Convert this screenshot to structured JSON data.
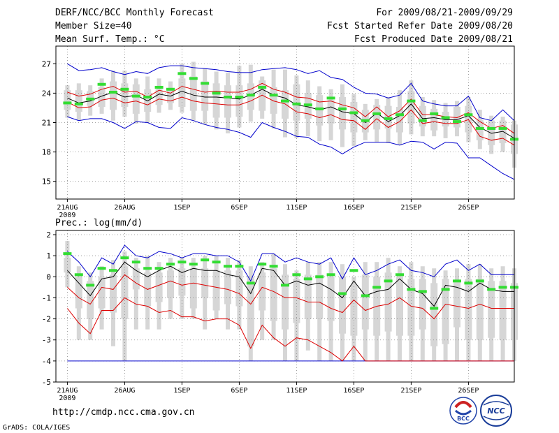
{
  "header": {
    "title": "DERF/NCC/BCC Monthly Forecast",
    "member_size": "Member Size=40",
    "variable": "Mean Surf. Temp.: °C",
    "for_period": "For 2009/08/21-2009/09/29",
    "fcst_started": "Fcst Started Refer Date 2009/08/20",
    "fcst_produced": "Fcst Produced Date 2009/08/21"
  },
  "footer": {
    "url": "http://cmdp.ncc.cma.gov.cn",
    "credit": "GrADS: COLA/IGES",
    "logo1_text": "BCC",
    "logo2_text": "NCC"
  },
  "colors": {
    "box": "#d6d6d6",
    "median": "#33dd33",
    "mean": "#000000",
    "inner": "#dd0000",
    "outer": "#0000cc",
    "grid": "#888888"
  },
  "chart_data": [
    {
      "type": "box-ensemble",
      "title": "Mean Surf. Temp.: °C",
      "x_tick_labels": [
        "21AUG",
        "26AUG",
        "1SEP",
        "6SEP",
        "11SEP",
        "16SEP",
        "21SEP",
        "26SEP"
      ],
      "x_tick_days": [
        1,
        6,
        11,
        16,
        21,
        26,
        31,
        36
      ],
      "x_sublabel": "2009",
      "day_range": [
        0,
        40
      ],
      "y_ticks": [
        15,
        18,
        21,
        24,
        27
      ],
      "ylim": [
        13.2,
        28.8
      ],
      "days": [
        1,
        2,
        3,
        4,
        5,
        6,
        7,
        8,
        9,
        10,
        11,
        12,
        13,
        14,
        15,
        16,
        17,
        18,
        19,
        20,
        21,
        22,
        23,
        24,
        25,
        26,
        27,
        28,
        29,
        30,
        31,
        32,
        33,
        34,
        35,
        36,
        37,
        38,
        39,
        40
      ],
      "series": [
        {
          "name": "box_max",
          "values": [
            24.8,
            25.0,
            24.8,
            25.5,
            26.3,
            26.3,
            25.5,
            25.7,
            25.5,
            25.2,
            27.0,
            27.2,
            26.5,
            26.2,
            26.1,
            26.8,
            26.9,
            25.7,
            26.4,
            26.4,
            25.8,
            25.3,
            24.7,
            24.4,
            24.9,
            23.9,
            22.9,
            23.4,
            23.6,
            24.3,
            25.3,
            23.6,
            23.3,
            23.0,
            23.2,
            23.6,
            22.3,
            21.7,
            21.6,
            21.2
          ]
        },
        {
          "name": "box_q3",
          "values": [
            24.3,
            24.3,
            24.2,
            24.6,
            25.2,
            25.0,
            24.9,
            24.4,
            24.4,
            24.4,
            25.5,
            25.7,
            25.2,
            25.0,
            24.8,
            24.8,
            25.0,
            25.3,
            24.6,
            24.3,
            24.9,
            24.0,
            23.8,
            23.3,
            23.6,
            23.1,
            22.3,
            22.8,
            22.7,
            22.6,
            24.2,
            22.7,
            22.4,
            22.1,
            22.6,
            22.7,
            21.3,
            21.2,
            21.2,
            20.8
          ]
        },
        {
          "name": "box_q1",
          "values": [
            22.3,
            22.1,
            22.7,
            22.6,
            22.3,
            22.6,
            21.9,
            22.1,
            22.8,
            23.0,
            22.6,
            22.2,
            22.2,
            21.5,
            21.5,
            21.6,
            22.3,
            22.2,
            21.9,
            21.4,
            21.2,
            21.4,
            20.7,
            20.9,
            20.3,
            20.0,
            20.0,
            20.3,
            20.4,
            20.0,
            20.9,
            20.6,
            20.2,
            20.6,
            20.5,
            20.0,
            19.2,
            18.7,
            18.9,
            17.8
          ]
        },
        {
          "name": "box_min",
          "values": [
            21.5,
            21.2,
            21.7,
            21.9,
            21.2,
            21.6,
            20.9,
            21.0,
            22.0,
            22.3,
            22.0,
            21.2,
            20.8,
            20.3,
            19.9,
            20.5,
            21.1,
            21.4,
            20.4,
            19.5,
            19.4,
            19.6,
            19.1,
            19.2,
            18.5,
            18.6,
            19.2,
            19.0,
            18.9,
            18.7,
            19.8,
            19.6,
            19.6,
            19.4,
            19.6,
            19.0,
            18.3,
            17.8,
            18.0,
            16.4
          ]
        },
        {
          "name": "median",
          "values": [
            23.0,
            22.9,
            23.4,
            24.9,
            24.1,
            24.4,
            23.7,
            23.6,
            24.6,
            24.4,
            26.0,
            25.5,
            25.0,
            24.0,
            23.6,
            23.6,
            23.8,
            24.6,
            23.8,
            23.2,
            22.9,
            22.8,
            22.4,
            23.5,
            22.4,
            22.0,
            21.2,
            21.9,
            21.4,
            21.8,
            23.2,
            21.2,
            21.9,
            21.5,
            21.1,
            21.8,
            20.4,
            20.4,
            20.4,
            19.3
          ]
        },
        {
          "name": "mean",
          "values": [
            23.5,
            23.0,
            23.2,
            23.7,
            24.1,
            23.6,
            23.8,
            23.2,
            23.9,
            23.7,
            24.2,
            23.8,
            23.6,
            23.6,
            23.5,
            23.4,
            23.8,
            24.4,
            23.8,
            23.5,
            22.8,
            22.6,
            22.3,
            22.6,
            22.1,
            21.9,
            21.0,
            22.0,
            21.1,
            21.7,
            22.9,
            21.4,
            21.5,
            21.3,
            21.3,
            21.7,
            20.5,
            19.9,
            20.1,
            19.4
          ]
        },
        {
          "name": "mean_plus_sd",
          "values": [
            24.1,
            23.7,
            23.9,
            24.4,
            24.7,
            24.1,
            24.2,
            23.6,
            24.3,
            24.0,
            24.7,
            24.4,
            24.1,
            24.2,
            24.1,
            24.1,
            24.4,
            25.0,
            24.4,
            24.1,
            23.6,
            23.5,
            23.1,
            23.2,
            22.8,
            22.5,
            21.6,
            22.6,
            21.6,
            22.2,
            23.4,
            21.8,
            21.8,
            21.6,
            21.5,
            22.0,
            21.1,
            20.4,
            20.7,
            19.9
          ]
        },
        {
          "name": "mean_minus_sd",
          "values": [
            23.1,
            22.5,
            22.6,
            23.3,
            23.5,
            23.0,
            23.2,
            22.8,
            23.4,
            23.2,
            23.6,
            23.2,
            23.0,
            22.9,
            22.8,
            22.8,
            23.2,
            23.8,
            23.2,
            22.9,
            22.1,
            21.9,
            21.5,
            21.8,
            21.3,
            21.2,
            20.3,
            21.4,
            20.5,
            21.1,
            22.3,
            20.9,
            21.1,
            20.9,
            20.9,
            21.3,
            19.6,
            19.2,
            19.4,
            18.7
          ]
        },
        {
          "name": "upper_bound",
          "values": [
            27.0,
            26.3,
            26.4,
            26.6,
            26.2,
            25.9,
            26.2,
            26.0,
            26.6,
            26.8,
            26.8,
            26.6,
            26.5,
            26.4,
            26.2,
            26.1,
            26.1,
            26.4,
            26.5,
            26.6,
            26.4,
            26.0,
            26.3,
            25.6,
            25.4,
            24.6,
            24.0,
            23.9,
            23.5,
            23.8,
            25.0,
            23.2,
            22.9,
            22.7,
            22.7,
            23.7,
            21.5,
            21.2,
            22.3,
            21.2
          ]
        },
        {
          "name": "lower_bound",
          "values": [
            21.6,
            21.2,
            21.4,
            21.4,
            21.0,
            20.4,
            21.1,
            21.0,
            20.5,
            20.4,
            21.5,
            21.2,
            20.8,
            20.5,
            20.3,
            20.0,
            19.5,
            21.0,
            20.5,
            20.1,
            19.6,
            19.5,
            18.8,
            18.5,
            17.8,
            18.5,
            19.0,
            19.0,
            19.0,
            18.7,
            19.1,
            19.0,
            18.3,
            19.0,
            18.9,
            17.4,
            17.4,
            16.6,
            15.8,
            15.2
          ]
        }
      ]
    },
    {
      "type": "box-ensemble",
      "title": "Prec.: log(mm/d)",
      "x_tick_labels": [
        "21AUG",
        "26AUG",
        "1SEP",
        "6SEP",
        "11SEP",
        "16SEP",
        "21SEP",
        "26SEP"
      ],
      "x_tick_days": [
        1,
        6,
        11,
        16,
        21,
        26,
        31,
        36
      ],
      "x_sublabel": "2009",
      "day_range": [
        0,
        40
      ],
      "y_ticks": [
        -5,
        -4,
        -3,
        -2,
        -1,
        0,
        1,
        2
      ],
      "ylim": [
        -5,
        2.2
      ],
      "days": [
        1,
        2,
        3,
        4,
        5,
        6,
        7,
        8,
        9,
        10,
        11,
        12,
        13,
        14,
        15,
        16,
        17,
        18,
        19,
        20,
        21,
        22,
        23,
        24,
        25,
        26,
        27,
        28,
        29,
        30,
        31,
        32,
        33,
        34,
        35,
        36,
        37,
        38,
        39,
        40
      ],
      "series": [
        {
          "name": "box_max",
          "values": [
            1.7,
            0.5,
            0.2,
            0.5,
            0.8,
            1.2,
            0.9,
            1.0,
            0.7,
            0.9,
            0.9,
            0.9,
            1.0,
            1.0,
            0.9,
            0.8,
            0.5,
            0.7,
            1.1,
            0.6,
            0.3,
            0.7,
            0.7,
            0.7,
            0.6,
            0.0,
            0.7,
            0.7,
            0.9,
            0.5,
            0.7,
            0.5,
            0.4,
            0.3,
            0.4,
            0.6,
            0.6,
            0.4,
            0.5,
            0.4
          ]
        },
        {
          "name": "box_q3",
          "values": [
            0.9,
            0.0,
            -0.2,
            0.0,
            0.1,
            0.5,
            0.4,
            0.2,
            0.2,
            0.3,
            0.4,
            0.4,
            0.4,
            0.3,
            0.3,
            0.3,
            0.0,
            0.2,
            0.4,
            0.1,
            -0.1,
            0.1,
            0.1,
            0.0,
            0.0,
            -0.4,
            0.1,
            0.0,
            0.2,
            0.0,
            -0.1,
            -0.1,
            -0.3,
            -0.1,
            -0.2,
            -0.1,
            -0.1,
            -0.2,
            -0.2,
            -0.3
          ]
        },
        {
          "name": "box_q1",
          "values": [
            0.2,
            -1.5,
            -2.0,
            -1.5,
            -1.7,
            -2.0,
            -0.6,
            -1.4,
            -1.2,
            -1.0,
            -0.9,
            -1.5,
            -1.0,
            -1.6,
            -1.3,
            -1.4,
            -3.3,
            -1.6,
            -2.1,
            -2.5,
            -2.2,
            -2.0,
            -2.0,
            -2.1,
            -2.7,
            -2.8,
            -2.5,
            -2.8,
            -2.6,
            -2.8,
            -2.8,
            -2.5,
            -3.3,
            -3.2,
            -2.4,
            -3.0,
            -3.0,
            -2.9,
            -3.0,
            -3.0
          ]
        },
        {
          "name": "box_min",
          "values": [
            -0.5,
            -3.0,
            -3.0,
            -2.5,
            -3.3,
            -4.0,
            -2.5,
            -2.5,
            -2.5,
            -2.0,
            -2.0,
            -2.0,
            -2.5,
            -2.0,
            -2.5,
            -2.5,
            -4.0,
            -3.0,
            -3.0,
            -4.0,
            -4.0,
            -3.5,
            -4.0,
            -4.0,
            -4.0,
            -4.0,
            -4.0,
            -4.0,
            -4.0,
            -4.0,
            -4.0,
            -4.0,
            -4.0,
            -4.0,
            -4.0,
            -4.0,
            -4.0,
            -4.0,
            -4.0,
            -4.0
          ]
        },
        {
          "name": "median",
          "values": [
            1.1,
            0.1,
            -0.4,
            0.4,
            0.3,
            0.9,
            0.7,
            0.4,
            0.4,
            0.6,
            0.7,
            0.6,
            0.8,
            0.7,
            0.5,
            0.5,
            -0.3,
            0.6,
            0.5,
            -0.4,
            0.1,
            -0.1,
            0.0,
            0.1,
            -0.8,
            0.3,
            -0.9,
            -0.5,
            -0.2,
            0.1,
            -0.6,
            -0.7,
            -1.5,
            -0.6,
            -0.2,
            -0.3,
            -0.2,
            -0.6,
            -0.5,
            -0.5
          ]
        },
        {
          "name": "mean",
          "values": [
            0.3,
            -0.3,
            -0.9,
            -0.1,
            0.0,
            0.7,
            0.3,
            0.0,
            0.3,
            0.5,
            0.2,
            0.4,
            0.3,
            0.3,
            0.1,
            0.0,
            -0.8,
            0.4,
            0.3,
            -0.4,
            -0.2,
            -0.4,
            -0.3,
            -0.6,
            -1.0,
            -0.2,
            -0.9,
            -0.7,
            -0.6,
            -0.1,
            -0.6,
            -0.8,
            -1.4,
            -0.4,
            -0.5,
            -0.7,
            -0.3,
            -0.6,
            -0.7,
            -0.7
          ]
        },
        {
          "name": "mean_minus_sd",
          "values": [
            -0.5,
            -1.0,
            -1.3,
            -0.5,
            -0.6,
            0.1,
            -0.3,
            -0.6,
            -0.4,
            -0.2,
            -0.4,
            -0.3,
            -0.4,
            -0.5,
            -0.6,
            -0.8,
            -1.3,
            -0.5,
            -0.7,
            -1.0,
            -1.0,
            -1.2,
            -1.2,
            -1.5,
            -1.7,
            -1.1,
            -1.6,
            -1.4,
            -1.3,
            -1.0,
            -1.4,
            -1.5,
            -2.0,
            -1.3,
            -1.4,
            -1.5,
            -1.3,
            -1.5,
            -1.5,
            -1.5
          ]
        },
        {
          "name": "mean_minus_2sd",
          "values": [
            -1.5,
            -2.2,
            -2.7,
            -1.6,
            -1.6,
            -1.0,
            -1.3,
            -1.4,
            -1.7,
            -1.6,
            -1.9,
            -1.9,
            -2.1,
            -2.0,
            -2.0,
            -2.3,
            -3.4,
            -2.3,
            -2.9,
            -3.3,
            -2.9,
            -3.0,
            -3.3,
            -3.6,
            -4.0,
            -3.3,
            -4.0,
            -4.0,
            -4.0,
            -4.0,
            -4.0,
            -4.0,
            -4.0,
            -4.0,
            -4.0,
            -4.0,
            -4.0,
            -4.0,
            -4.0,
            -4.0
          ]
        },
        {
          "name": "upper_bound",
          "values": [
            1.2,
            0.7,
            0.0,
            0.9,
            0.6,
            1.5,
            1.0,
            0.9,
            1.2,
            1.1,
            0.9,
            1.1,
            1.1,
            1.0,
            1.0,
            0.7,
            -0.2,
            1.1,
            1.1,
            0.7,
            0.9,
            0.7,
            0.6,
            0.9,
            -0.1,
            0.9,
            0.1,
            0.3,
            0.6,
            0.8,
            0.3,
            0.2,
            0.0,
            0.6,
            0.8,
            0.3,
            0.6,
            0.1,
            0.1,
            0.1
          ]
        },
        {
          "name": "lower_bound",
          "values": [
            -4.0,
            -4.0,
            -4.0,
            -4.0,
            -4.0,
            -4.0,
            -4.0,
            -4.0,
            -4.0,
            -4.0,
            -4.0,
            -4.0,
            -4.0,
            -4.0,
            -4.0,
            -4.0,
            -4.0,
            -4.0,
            -4.0,
            -4.0,
            -4.0,
            -4.0,
            -4.0,
            -4.0,
            -4.0,
            -4.0,
            -4.0,
            -4.0,
            -4.0,
            -4.0,
            -4.0,
            -4.0,
            -4.0,
            -4.0,
            -4.0,
            -4.0,
            -4.0,
            -4.0,
            -4.0,
            -4.0
          ]
        }
      ]
    }
  ]
}
